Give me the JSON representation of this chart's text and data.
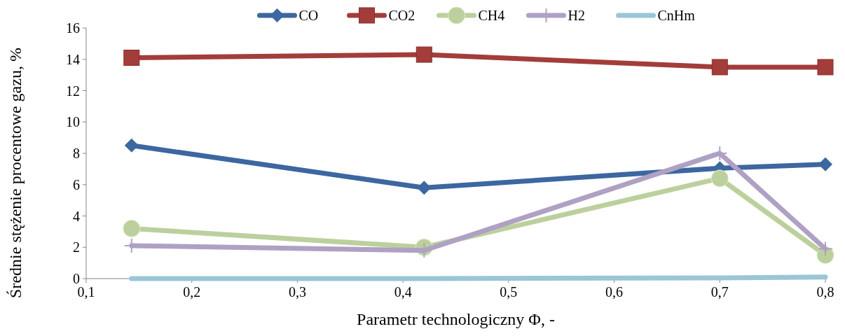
{
  "chart_data": {
    "type": "line",
    "xlabel": "Parametr technologiczny Φ, -",
    "ylabel": "Średnie stężenie procentowe gazu, %",
    "x": [
      0.143,
      0.42,
      0.7,
      0.8
    ],
    "xlim": [
      0.1,
      0.8
    ],
    "xticks": [
      {
        "value": 0.1,
        "label": "0,1"
      },
      {
        "value": 0.2,
        "label": "0,2"
      },
      {
        "value": 0.3,
        "label": "0,3"
      },
      {
        "value": 0.4,
        "label": "0,4"
      },
      {
        "value": 0.5,
        "label": "0,5"
      },
      {
        "value": 0.6,
        "label": "0,6"
      },
      {
        "value": 0.7,
        "label": "0,7"
      },
      {
        "value": 0.8,
        "label": "0,8"
      }
    ],
    "ylim": [
      0,
      16
    ],
    "yticks": [
      0,
      2,
      4,
      6,
      8,
      10,
      12,
      14,
      16
    ],
    "legend": "top",
    "grid": false,
    "series": [
      {
        "name": "CO",
        "color": "#3c67a0",
        "marker": "diamond",
        "values": [
          8.5,
          5.8,
          7.05,
          7.3
        ]
      },
      {
        "name": "CO2",
        "color": "#a33d3a",
        "marker": "square",
        "values": [
          14.1,
          14.3,
          13.5,
          13.5
        ]
      },
      {
        "name": "CH4",
        "color": "#bcd09d",
        "marker": "circle",
        "values": [
          3.2,
          2.0,
          6.4,
          1.5
        ]
      },
      {
        "name": "H2",
        "color": "#afa1c4",
        "marker": "cross",
        "values": [
          2.1,
          1.8,
          8.0,
          1.9
        ]
      },
      {
        "name": "CnHm",
        "color": "#9ac6d5",
        "marker": "none",
        "values": [
          0,
          0,
          0.05,
          0.1
        ]
      }
    ]
  }
}
